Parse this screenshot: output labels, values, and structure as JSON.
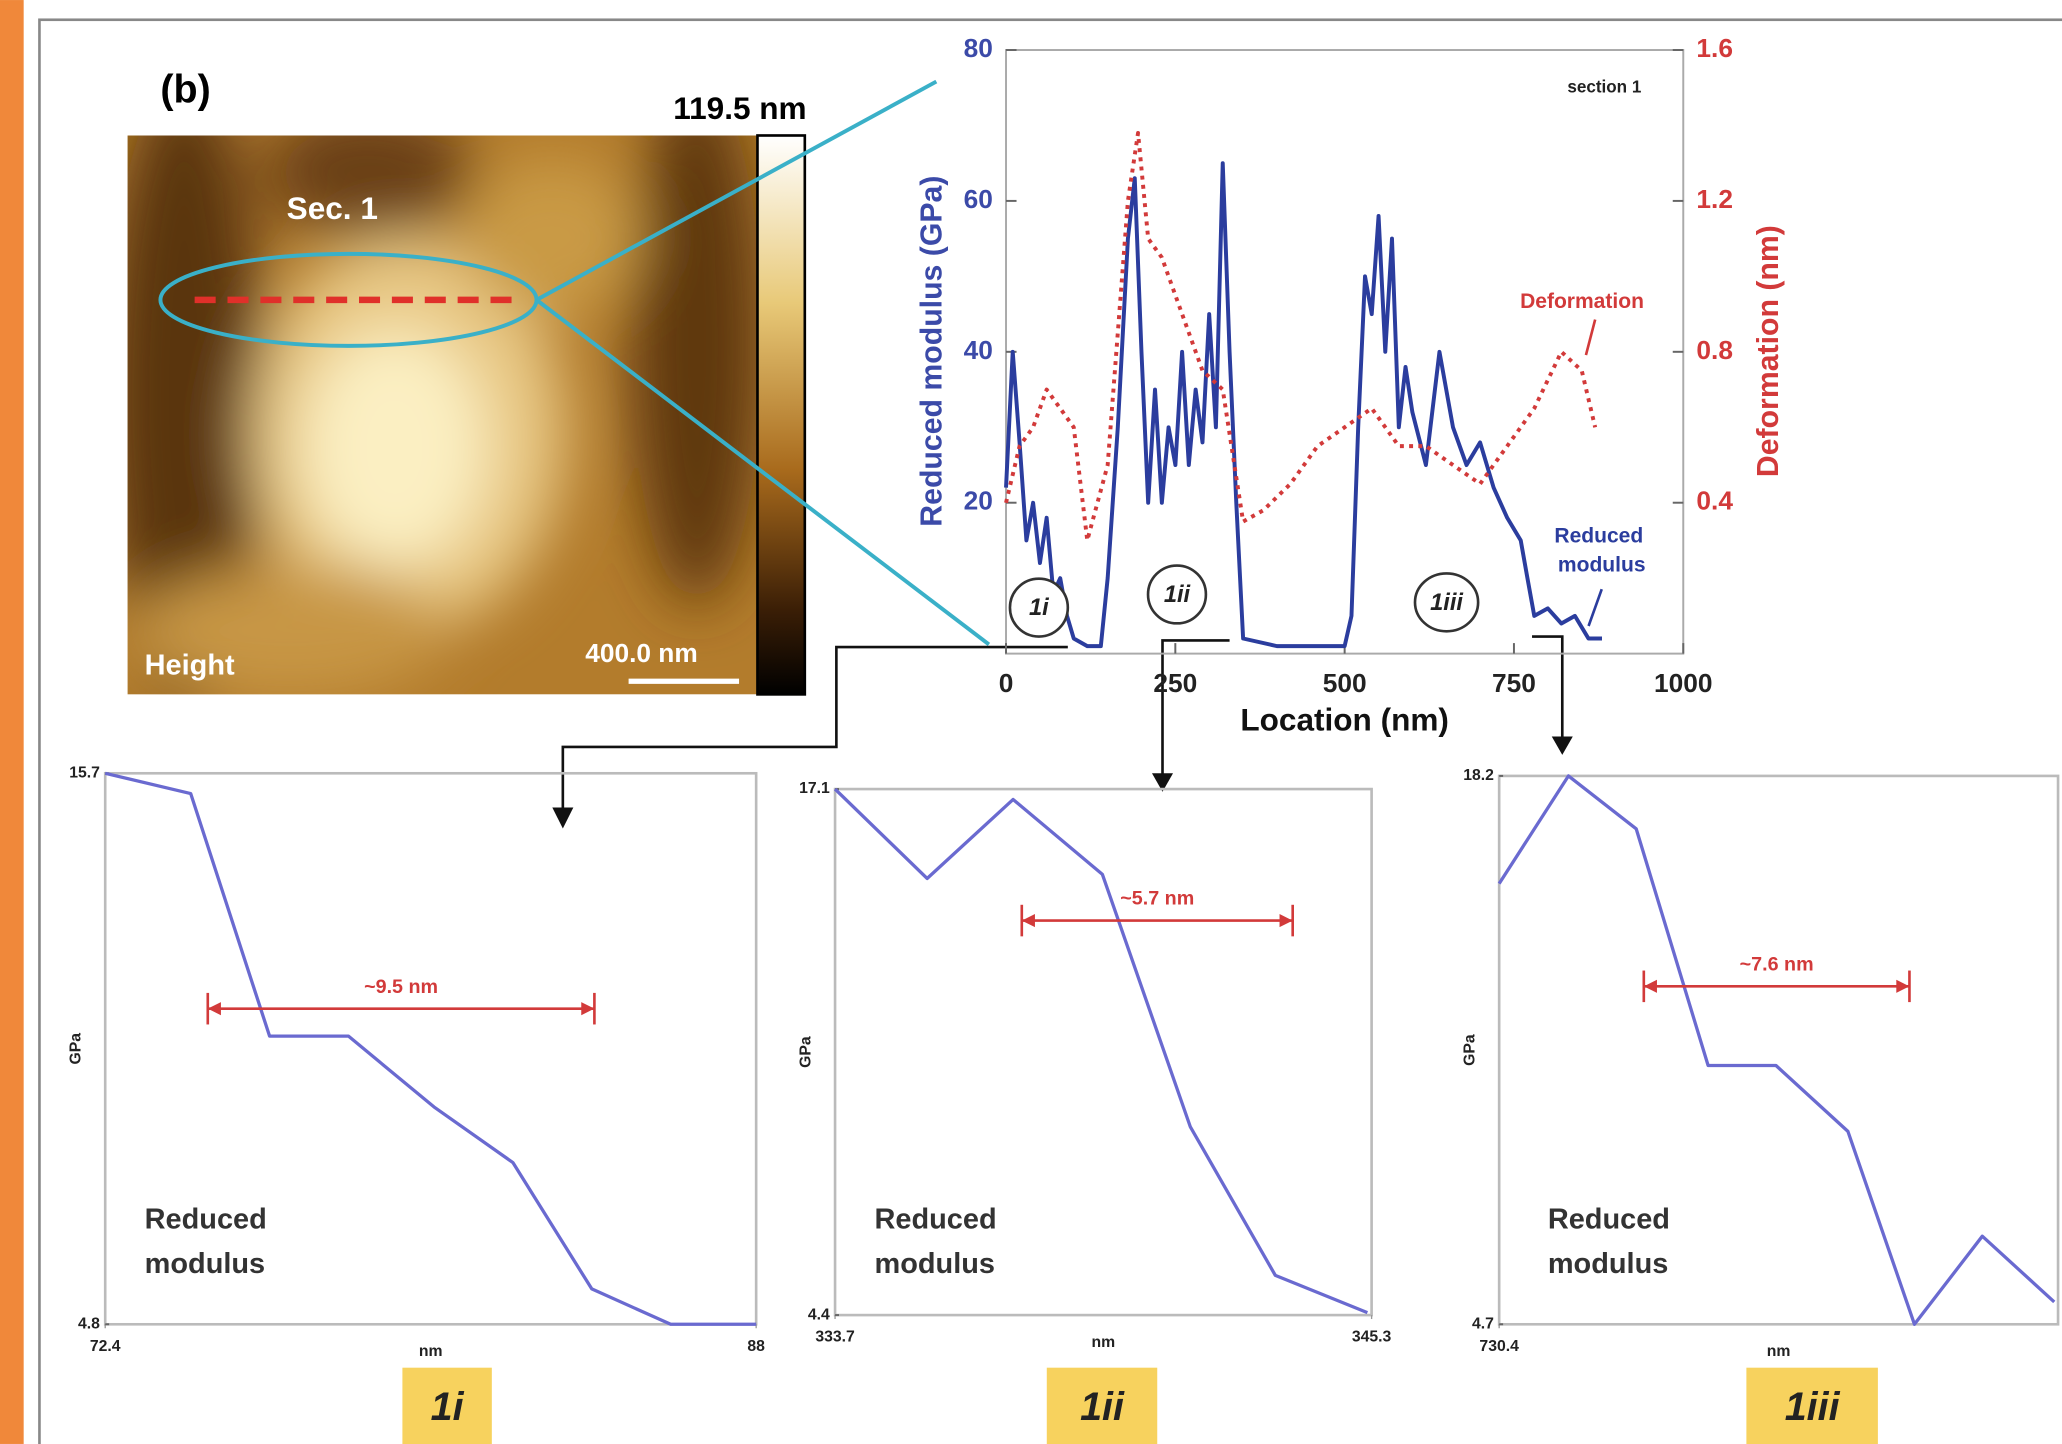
{
  "afm_image": {
    "panel_label": "(b)",
    "scale_max": "119.5 nm",
    "section_label": "Sec. 1",
    "channel": "Height",
    "scale_bar": "400.0 nm"
  },
  "chart_data": [
    {
      "type": "line",
      "annotation": "section 1",
      "x_label": "Location (nm)",
      "y_label": "Reduced modulus (GPa)",
      "y2_label": "Deformation (nm)",
      "xlim": [
        0,
        1000
      ],
      "xticks": [
        0,
        250,
        500,
        750,
        1000
      ],
      "ylim": [
        0,
        80
      ],
      "yticks": [
        20,
        40,
        60,
        80
      ],
      "y2lim": [
        0,
        1.6
      ],
      "y2ticks": [
        0.4,
        0.8,
        1.2,
        1.6
      ],
      "region_labels": [
        "1i",
        "1ii",
        "1iii"
      ],
      "series": [
        {
          "name": "Reduced modulus",
          "color": "#2b3d9e",
          "style": "solid",
          "x": [
            0,
            10,
            20,
            30,
            40,
            50,
            60,
            70,
            80,
            90,
            100,
            120,
            140,
            150,
            165,
            180,
            190,
            200,
            210,
            220,
            230,
            240,
            250,
            260,
            270,
            280,
            290,
            300,
            310,
            320,
            330,
            340,
            350,
            400,
            450,
            500,
            510,
            520,
            530,
            540,
            550,
            560,
            570,
            580,
            590,
            600,
            620,
            640,
            660,
            680,
            700,
            720,
            740,
            760,
            770,
            780,
            800,
            820,
            840,
            860,
            880
          ],
          "values": [
            22,
            40,
            28,
            15,
            20,
            12,
            18,
            8,
            10,
            5,
            2,
            1,
            1,
            10,
            30,
            55,
            63,
            40,
            20,
            35,
            20,
            30,
            25,
            40,
            25,
            35,
            28,
            45,
            30,
            65,
            40,
            20,
            2,
            1,
            1,
            1,
            5,
            30,
            50,
            45,
            58,
            40,
            55,
            30,
            38,
            32,
            25,
            40,
            30,
            25,
            28,
            22,
            18,
            15,
            10,
            5,
            6,
            4,
            5,
            2,
            2
          ]
        },
        {
          "name": "Deformation",
          "color": "#d23a3a",
          "style": "dotted",
          "axis": "y2",
          "x": [
            0,
            20,
            40,
            60,
            80,
            100,
            120,
            150,
            180,
            195,
            210,
            230,
            260,
            290,
            320,
            350,
            380,
            420,
            460,
            500,
            540,
            580,
            620,
            660,
            700,
            740,
            780,
            820,
            850,
            870
          ],
          "values": [
            0.4,
            0.55,
            0.6,
            0.7,
            0.65,
            0.6,
            0.3,
            0.5,
            1.2,
            1.38,
            1.1,
            1.05,
            0.9,
            0.75,
            0.7,
            0.35,
            0.38,
            0.45,
            0.55,
            0.6,
            0.65,
            0.55,
            0.55,
            0.5,
            0.45,
            0.55,
            0.65,
            0.8,
            0.75,
            0.6
          ]
        }
      ]
    },
    {
      "type": "line",
      "label": "1i",
      "x_label": "nm",
      "y_label": "GPa",
      "annotation": "Reduced modulus",
      "measurement": "~9.5 nm",
      "xlim": [
        72.4,
        88
      ],
      "xticks": [
        72.4,
        88
      ],
      "ylim": [
        4.8,
        15.7
      ],
      "yticks": [
        4.8,
        15.7
      ],
      "series": [
        {
          "name": "Reduced modulus",
          "color": "#6a6ad0",
          "style": "solid",
          "x": [
            72.4,
            74.45,
            76.34,
            78.23,
            80.28,
            82.17,
            84.06,
            85.95,
            88.0
          ],
          "values": [
            15.7,
            15.3,
            10.5,
            10.5,
            9.1,
            8.0,
            5.5,
            4.8,
            4.8
          ]
        }
      ]
    },
    {
      "type": "line",
      "label": "1ii",
      "x_label": "nm",
      "y_label": "GPa",
      "annotation": "Reduced modulus",
      "measurement": "~5.7 nm",
      "xlim": [
        333.7,
        345.3
      ],
      "xticks": [
        333.7,
        345.3
      ],
      "ylim": [
        4.4,
        17.1
      ],
      "yticks": [
        4.4,
        17.1
      ],
      "series": [
        {
          "name": "Reduced modulus",
          "color": "#6a6ad0",
          "style": "solid",
          "x": [
            333.7,
            335.69,
            337.55,
            339.48,
            341.38,
            343.22,
            345.21
          ],
          "values": [
            17.1,
            14.94,
            16.85,
            15.04,
            8.95,
            5.36,
            4.46
          ]
        }
      ]
    },
    {
      "type": "line",
      "label": "1iii",
      "x_label": "nm",
      "y_label": "GPa",
      "annotation": "Reduced modulus",
      "measurement": "~7.6 nm",
      "xlim": [
        730.4,
        745
      ],
      "xticks": [
        730.4
      ],
      "ylim": [
        4.7,
        18.2
      ],
      "yticks": [
        4.7,
        18.2
      ],
      "series": [
        {
          "name": "Reduced modulus",
          "color": "#6a6ad0",
          "style": "solid",
          "x": [
            730.4,
            732.21,
            733.98,
            735.86,
            737.63,
            739.51,
            741.25,
            743.02,
            744.9
          ],
          "values": [
            15.55,
            18.2,
            16.9,
            11.07,
            11.07,
            9.45,
            4.7,
            6.87,
            5.25
          ]
        }
      ]
    }
  ]
}
